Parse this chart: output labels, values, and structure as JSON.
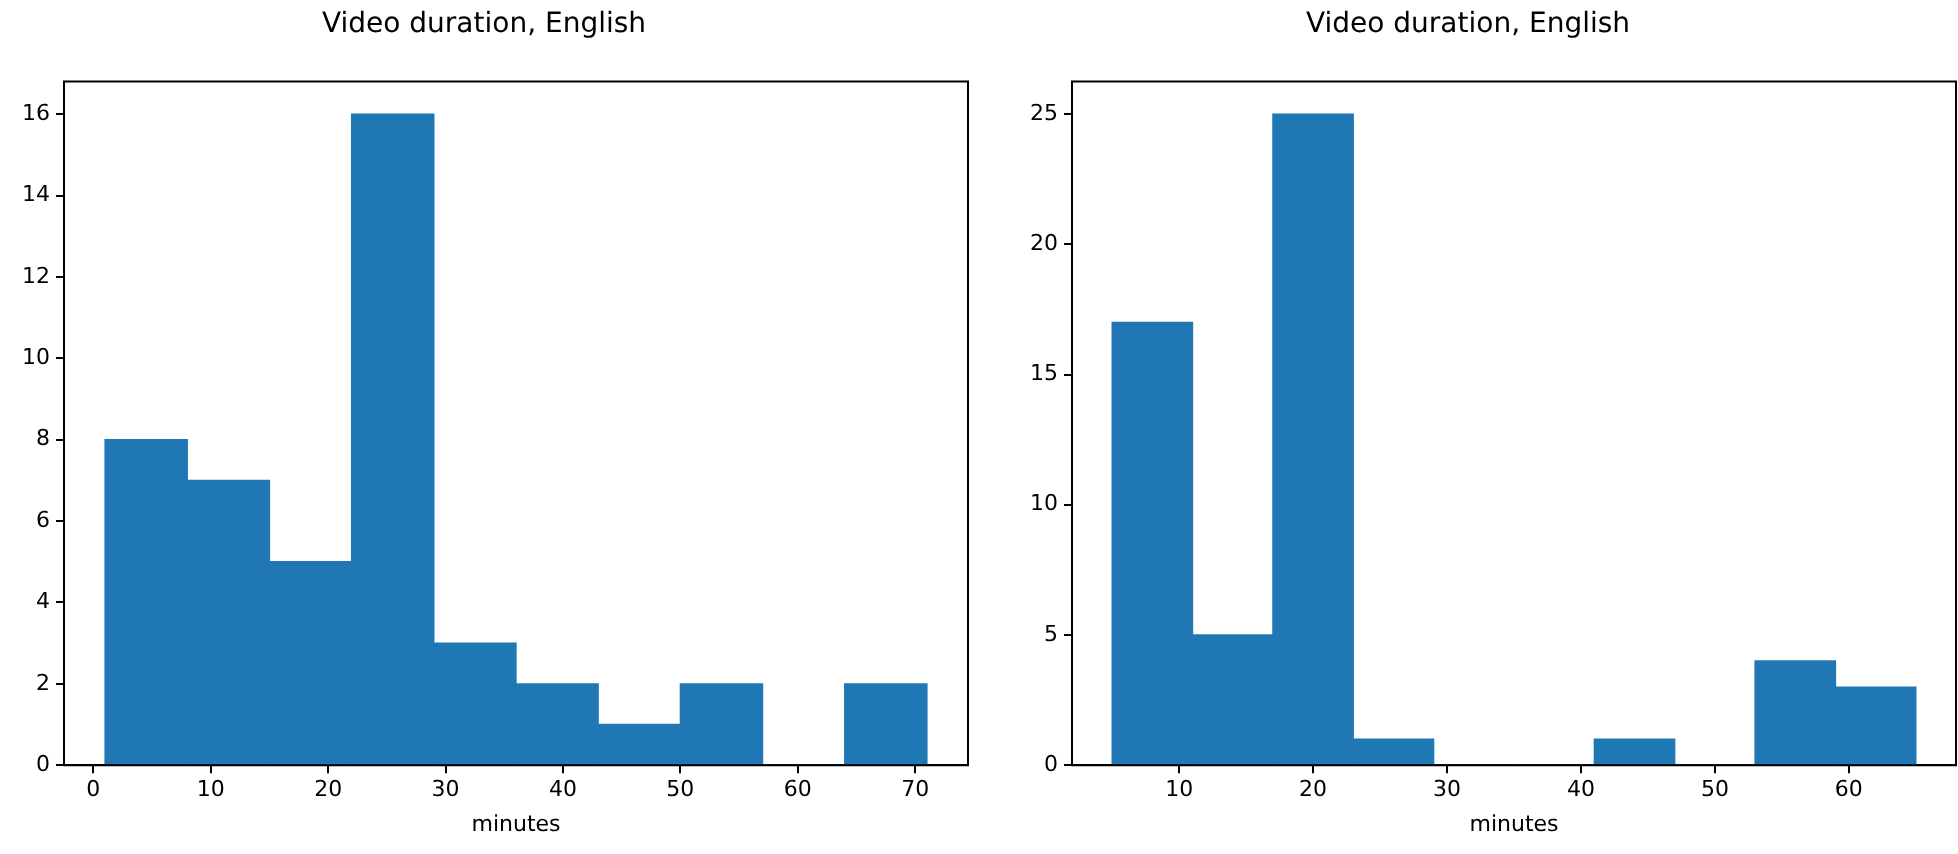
{
  "chart_data": [
    {
      "type": "histogram",
      "title": "Video duration, English",
      "xlabel": "minutes",
      "bins": [
        1,
        8,
        15,
        22,
        29,
        36,
        43,
        50,
        57,
        64,
        71
      ],
      "values": [
        8,
        7,
        5,
        16,
        3,
        2,
        1,
        2,
        0,
        2
      ],
      "color": "#1f77b4",
      "xlim": [
        -2.5,
        74.5
      ],
      "xticks": [
        0,
        10,
        20,
        30,
        40,
        50,
        60,
        70
      ],
      "ylim": [
        0,
        16.8
      ],
      "yticks": [
        0,
        2,
        4,
        6,
        8,
        10,
        12,
        14,
        16
      ],
      "grid": false
    },
    {
      "type": "histogram",
      "title": "Video duration, English",
      "xlabel": "minutes",
      "bins": [
        5,
        11,
        17,
        23,
        29,
        35,
        41,
        47,
        53,
        59,
        65
      ],
      "values": [
        17,
        5,
        25,
        1,
        0,
        0,
        1,
        0,
        4,
        3
      ],
      "color": "#1f77b4",
      "xlim": [
        2,
        68
      ],
      "xticks": [
        10,
        20,
        30,
        40,
        50,
        60
      ],
      "ylim": [
        0,
        26.25
      ],
      "yticks": [
        0,
        5,
        10,
        15,
        20,
        25
      ],
      "grid": false
    }
  ]
}
